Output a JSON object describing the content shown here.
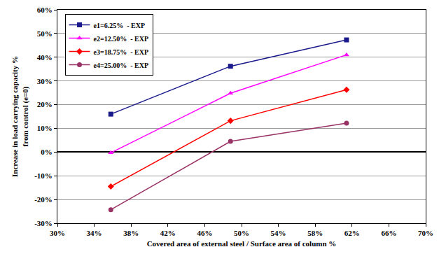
{
  "chart_data": {
    "type": "line",
    "x_label": "Covered area of external steel / Surface area of column %",
    "y_label": "Increase in load carrying capacity %\nfrom control (e=0)",
    "x": [
      35.8,
      48.8,
      61.4
    ],
    "series": [
      {
        "name": "e1=6.25%  - EXP",
        "color": "#1a1a8c",
        "marker": "square",
        "values": [
          16.0,
          36.2,
          47.3
        ]
      },
      {
        "name": "e2=12.50%  - EXP",
        "color": "#ff00ff",
        "marker": "triangle-up",
        "values": [
          -0.3,
          24.8,
          41.0
        ]
      },
      {
        "name": "e3=18.75%  - EXP",
        "color": "#ff0000",
        "marker": "diamond",
        "values": [
          -14.5,
          13.2,
          26.3
        ]
      },
      {
        "name": "e4=25.00%  - EXP",
        "color": "#993366",
        "marker": "circle",
        "values": [
          -24.3,
          4.5,
          12.2
        ]
      }
    ],
    "xlim": [
      30,
      70
    ],
    "xticks": [
      {
        "value": 30,
        "label": "30%"
      },
      {
        "value": 34,
        "label": "34%"
      },
      {
        "value": 38,
        "label": "38%"
      },
      {
        "value": 42,
        "label": "42%"
      },
      {
        "value": 46,
        "label": "46%"
      },
      {
        "value": 50,
        "label": "50%"
      },
      {
        "value": 54,
        "label": "54%"
      },
      {
        "value": 58,
        "label": "58%"
      },
      {
        "value": 62,
        "label": "62%"
      },
      {
        "value": 66,
        "label": "66%"
      },
      {
        "value": 70,
        "label": "70%"
      }
    ],
    "ylim": [
      -30,
      60
    ],
    "yticks": [
      {
        "value": -30,
        "label": "-30%"
      },
      {
        "value": -20,
        "label": "-20%"
      },
      {
        "value": -10,
        "label": "-10%"
      },
      {
        "value": 0,
        "label": "0%"
      },
      {
        "value": 10,
        "label": "10%"
      },
      {
        "value": 20,
        "label": "20%"
      },
      {
        "value": 30,
        "label": "30%"
      },
      {
        "value": 40,
        "label": "40%"
      },
      {
        "value": 50,
        "label": "50%"
      },
      {
        "value": 60,
        "label": "60%"
      }
    ],
    "grid": true,
    "legend": "top-left"
  }
}
